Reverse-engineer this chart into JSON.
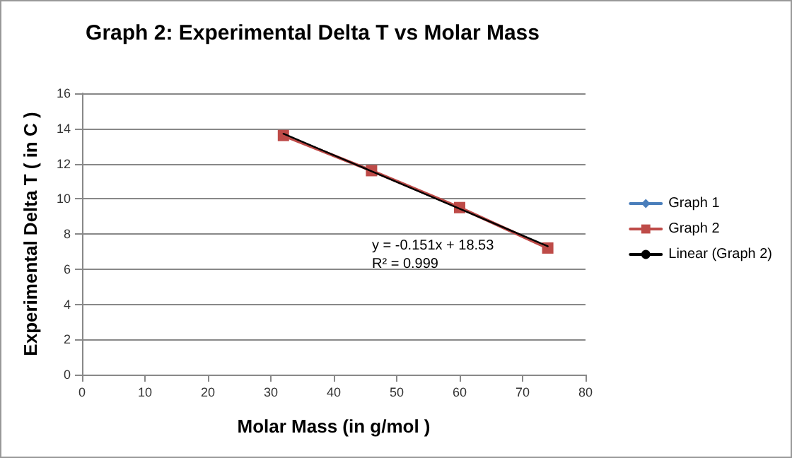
{
  "chart_data": {
    "type": "line",
    "title": "Graph 2: Experimental Delta T vs Molar Mass",
    "xlabel": "Molar Mass (in g/mol )",
    "ylabel": "Experimental Delta T ( in C )",
    "x": [
      32,
      46,
      60,
      74
    ],
    "series": [
      {
        "name": "Graph 1",
        "color": "#4a7ebb",
        "marker": "diamond",
        "values": [
          null,
          null,
          null,
          null
        ]
      },
      {
        "name": "Graph 2",
        "color": "#be4b48",
        "marker": "square",
        "values": [
          13.6,
          11.6,
          9.5,
          7.2
        ]
      },
      {
        "name": "Linear (Graph 2)",
        "color": "#000000",
        "marker": "none",
        "x": [
          32,
          74
        ],
        "values": [
          13.7,
          7.3
        ]
      }
    ],
    "annotations": [
      "y = -0.151x + 18.53",
      "R² = 0.999"
    ],
    "xlim": [
      0,
      80
    ],
    "xticks": [
      0,
      10,
      20,
      30,
      40,
      50,
      60,
      70,
      80
    ],
    "ylim": [
      0,
      16
    ],
    "yticks": [
      0,
      2,
      4,
      6,
      8,
      10,
      12,
      14,
      16
    ],
    "grid": "y",
    "legend": "right"
  }
}
